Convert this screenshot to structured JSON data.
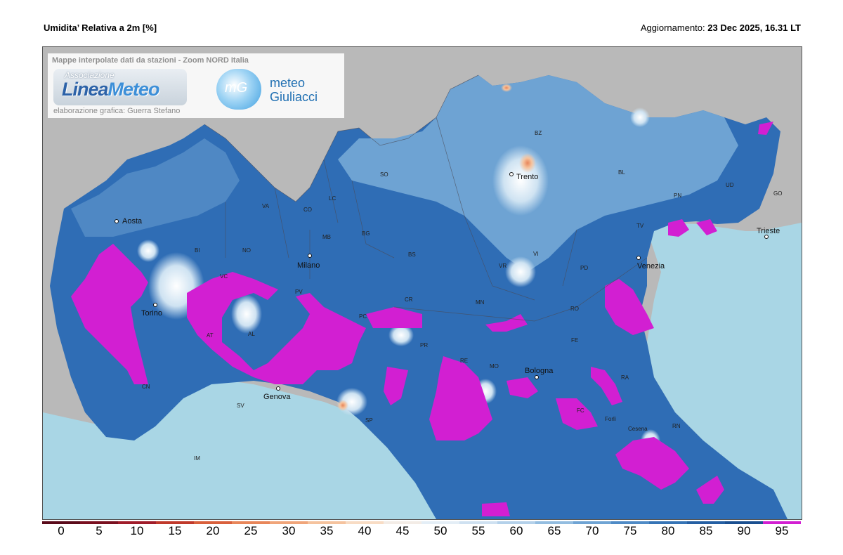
{
  "header": {
    "title": "Umidita’ Relativa a 2m [%]",
    "updated_label": "Aggiornamento:",
    "updated_value": "23 Dec 2025, 16.31 LT"
  },
  "credits": {
    "subtitle": "Mappe interpolate dati da stazioni - Zoom NORD Italia",
    "logo_association": "Associazione",
    "logo_name_a": "Linea",
    "logo_name_b": "Meteo",
    "graphics_credit": "elaborazione grafica: Guerra Stefano",
    "mg_badge": "mG",
    "mg_line1": "meteo",
    "mg_line2": "Giuliacci"
  },
  "cities": [
    "Aosta",
    "Torino",
    "Milano",
    "Genova",
    "Trento",
    "Bologna",
    "Venezia",
    "Trieste"
  ],
  "provinces": [
    "BZ",
    "SO",
    "BL",
    "UD",
    "GO",
    "PN",
    "TV",
    "VA",
    "CO",
    "LC",
    "BI",
    "NO",
    "MB",
    "BG",
    "BS",
    "VR",
    "VI",
    "PD",
    "VC",
    "PV",
    "CR",
    "MN",
    "RO",
    "AT",
    "AL",
    "PC",
    "FE",
    "RE",
    "MO",
    "PR",
    "RA",
    "CN",
    "SV",
    "SP",
    "FC",
    "Forlì",
    "Cesena",
    "RN",
    "IM"
  ],
  "legend": {
    "ticks": [
      "0",
      "5",
      "10",
      "15",
      "20",
      "25",
      "30",
      "35",
      "40",
      "45",
      "50",
      "55",
      "60",
      "65",
      "70",
      "75",
      "80",
      "85",
      "90",
      "95"
    ],
    "colors": [
      "#5a0a1a",
      "#7a1020",
      "#a01c2a",
      "#c0392b",
      "#d9603c",
      "#e8865a",
      "#f0a57a",
      "#f5c39e",
      "#f8dcc4",
      "#f3ece6",
      "#e4eef6",
      "#cfe1f1",
      "#b4d1ea",
      "#93bde0",
      "#6fa4d4",
      "#4f8bc6",
      "#3674b6",
      "#255fa3",
      "#1a4f90",
      "#d21fd2"
    ]
  }
}
